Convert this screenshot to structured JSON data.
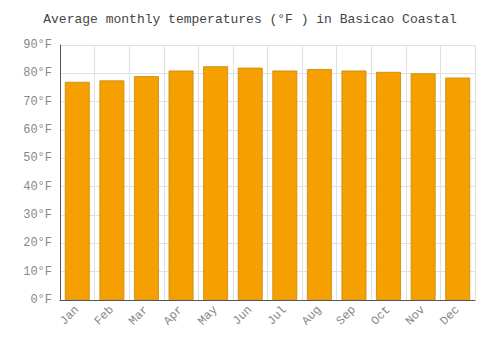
{
  "chart_data": {
    "type": "bar",
    "title": "Average monthly temperatures (°F ) in Basicao Coastal",
    "categories": [
      "Jan",
      "Feb",
      "Mar",
      "Apr",
      "May",
      "Jun",
      "Jul",
      "Aug",
      "Sep",
      "Oct",
      "Nov",
      "Dec"
    ],
    "values": [
      77,
      77.5,
      79,
      81,
      82.5,
      82,
      81,
      81.5,
      81,
      80.5,
      80,
      78.5
    ],
    "color": "#F5A000",
    "ylim": [
      0,
      90
    ],
    "yticks": [
      {
        "value": 0,
        "label": "0°F"
      },
      {
        "value": 10,
        "label": "10°F"
      },
      {
        "value": 20,
        "label": "20°F"
      },
      {
        "value": 30,
        "label": "30°F"
      },
      {
        "value": 40,
        "label": "40°F"
      },
      {
        "value": 50,
        "label": "50°F"
      },
      {
        "value": 60,
        "label": "60°F"
      },
      {
        "value": 70,
        "label": "70°F"
      },
      {
        "value": 80,
        "label": "80°F"
      },
      {
        "value": 90,
        "label": "90°F"
      }
    ],
    "grid": true
  }
}
